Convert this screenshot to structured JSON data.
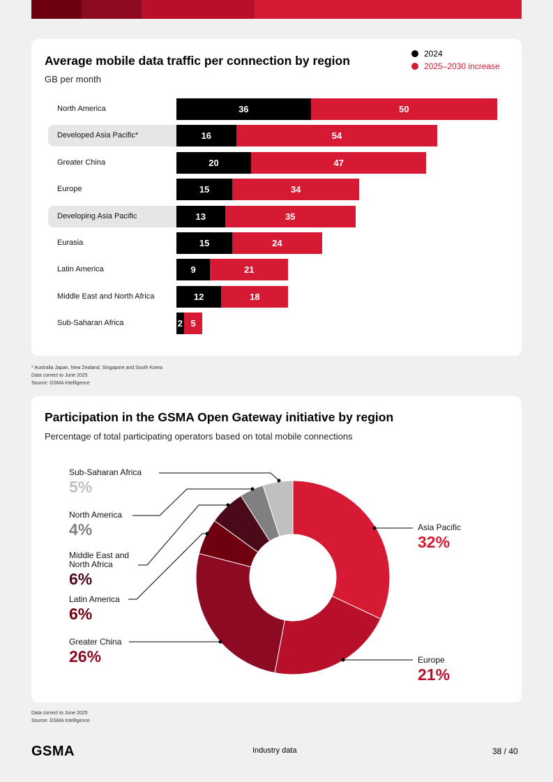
{
  "colors": {
    "seg1": "#6f0010",
    "seg2": "#8c0a22",
    "seg3": "#b8102a",
    "seg4": "#d71a33",
    "black": "#000000",
    "red": "#d71a33"
  },
  "chart1": {
    "title": "Average mobile data traffic per connection by region",
    "subtitle": "GB per month",
    "legend": [
      "2024",
      "2025–2030 increase"
    ],
    "notes": [
      "* Australia Japan, New Zealand, Singapore and South Korea",
      "Data correct to June 2025",
      "Source: GSMA Intelligence"
    ]
  },
  "chart_data": [
    {
      "type": "bar",
      "orientation": "horizontal",
      "stacked": true,
      "title": "Average mobile data traffic per connection by region",
      "ylabel": "GB per month",
      "categories": [
        "North America",
        "Developed Asia Pacific*",
        "Greater China",
        "Europe",
        "Developing Asia Pacific",
        "Eurasia",
        "Latin America",
        "Middle East and North Africa",
        "Sub-Saharan Africa"
      ],
      "highlighted": [
        "Developed Asia Pacific*",
        "Developing Asia Pacific"
      ],
      "series": [
        {
          "name": "2024",
          "color": "#000000",
          "values": [
            36,
            16,
            20,
            15,
            13,
            15,
            9,
            12,
            2
          ]
        },
        {
          "name": "2025–2030 increase",
          "color": "#d71a33",
          "values": [
            50,
            54,
            47,
            34,
            35,
            24,
            21,
            18,
            5
          ]
        }
      ]
    },
    {
      "type": "pie",
      "donut": true,
      "title": "Participation in the GSMA Open Gateway initiative by region",
      "subtitle": "Percentage of total participating operators based on total mobile connections",
      "slices": [
        {
          "label": "Asia Pacific",
          "value": 32,
          "display": "32%",
          "color": "#d71a33"
        },
        {
          "label": "Europe",
          "value": 21,
          "display": "21%",
          "color": "#b8102a"
        },
        {
          "label": "Greater China",
          "value": 26,
          "display": "26%",
          "color": "#8c0a22"
        },
        {
          "label": "Latin America",
          "value": 6,
          "display": "6%",
          "color": "#6f0010"
        },
        {
          "label": "Middle East and North Africa",
          "value": 6,
          "display": "6%",
          "color": "#4a0a1a"
        },
        {
          "label": "North America",
          "value": 4,
          "display": "4%",
          "color": "#808082"
        },
        {
          "label": "Sub-Saharan Africa",
          "value": 5,
          "display": "5%",
          "color": "#c0c0c2"
        }
      ]
    }
  ],
  "chart2": {
    "title": "Participation in the GSMA Open Gateway initiative by region",
    "subtitle": "Percentage of total participating operators based on total mobile connections",
    "mena_line1": "Middle East and",
    "mena_line2": "North Africa",
    "notes": [
      "Data correct to June 2025",
      "Source: GSMA Intelligence"
    ]
  },
  "footer": {
    "logo": "GSMA",
    "section": "Industry data",
    "page": "38 / 40"
  }
}
